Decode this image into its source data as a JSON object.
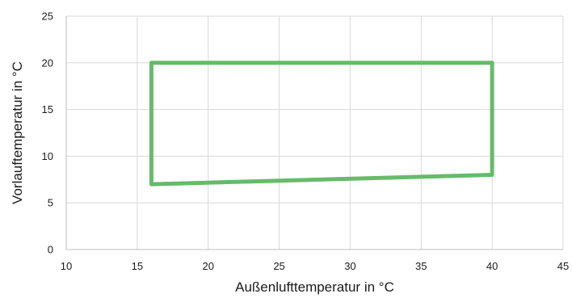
{
  "chart_data": {
    "type": "line",
    "title": "",
    "xlabel": "Außenlufttemperatur in °C",
    "ylabel": "Vorlauftemperatur in °C",
    "xlim": [
      10,
      45
    ],
    "ylim": [
      0,
      25
    ],
    "x_ticks": [
      "10",
      "15",
      "20",
      "25",
      "30",
      "35",
      "40",
      "45"
    ],
    "y_ticks": [
      "0",
      "5",
      "10",
      "15",
      "20",
      "25"
    ],
    "grid": true,
    "legend": "none",
    "series": [
      {
        "color": "#66bb6a",
        "points": [
          {
            "x": 16,
            "y": 20
          },
          {
            "x": 40,
            "y": 20
          },
          {
            "x": 40,
            "y": 8
          },
          {
            "x": 16,
            "y": 7
          },
          {
            "x": 16,
            "y": 20
          }
        ]
      }
    ]
  }
}
